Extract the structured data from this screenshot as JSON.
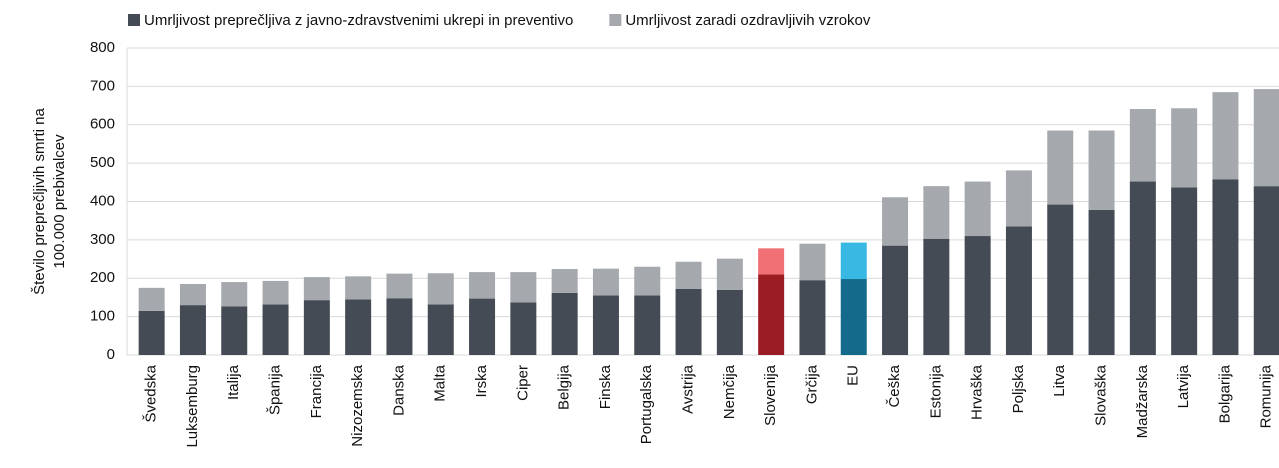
{
  "chart_data": {
    "type": "stacked_bar",
    "y_label": [
      "Število preprečljivih smrti na",
      "100.000 prebivalcev"
    ],
    "categories": [
      "Švedska",
      "Luksemburg",
      "Italija",
      "Španija",
      "Francija",
      "Nizozemska",
      "Danska",
      "Malta",
      "Irska",
      "Ciper",
      "Belgija",
      "Finska",
      "Portugalska",
      "Avstrija",
      "Nemčija",
      "Slovenija",
      "Grčija",
      "EU",
      "Češka",
      "Estonija",
      "Hrvaška",
      "Poljska",
      "Litva",
      "Slovaška",
      "Madžarska",
      "Latvija",
      "Bolgarija",
      "Romunija"
    ],
    "series": [
      {
        "name": "Umrljivost preprečljiva z javno-zdravstvenimi ukrepi in preventivo",
        "color": "#454b54",
        "point_colors": {
          "15": "#9b1c22",
          "17": "#146a8a"
        },
        "values": [
          115,
          130,
          127,
          132,
          143,
          145,
          148,
          132,
          147,
          137,
          162,
          155,
          155,
          172,
          170,
          210,
          195,
          198,
          285,
          303,
          310,
          335,
          392,
          378,
          452,
          437,
          458,
          440
        ]
      },
      {
        "name": "Umrljivost zaradi ozdravljivih vzrokov",
        "color": "#a5a9ae",
        "point_colors": {
          "15": "#f07075",
          "17": "#39b8e4"
        },
        "values": [
          60,
          55,
          63,
          61,
          60,
          60,
          64,
          81,
          69,
          79,
          62,
          70,
          75,
          71,
          81,
          68,
          95,
          95,
          126,
          137,
          142,
          146,
          193,
          207,
          189,
          206,
          227,
          253
        ]
      }
    ],
    "ylim": [
      0,
      800
    ],
    "yticks": [
      0,
      100,
      200,
      300,
      400,
      500,
      600,
      700,
      800
    ],
    "grid": true
  }
}
